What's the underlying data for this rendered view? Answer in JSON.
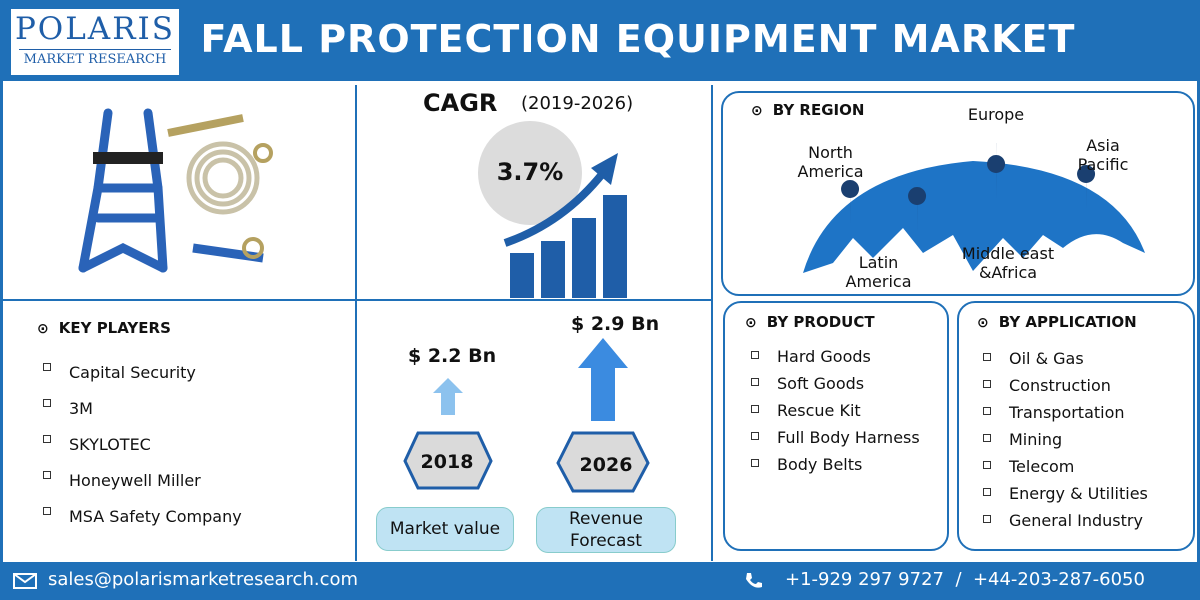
{
  "header": {
    "logo_name": "POLARIS",
    "logo_sub": "MARKET RESEARCH",
    "title": "FALL PROTECTION EQUIPMENT MARKET"
  },
  "cagr": {
    "label": "CAGR",
    "period": "(2019-2026)",
    "value": "3.7%"
  },
  "region": {
    "heading": "BY REGION",
    "labels": [
      "Europe",
      "North America",
      "Asia Pacific",
      "Latin America",
      "Middle east &Africa"
    ]
  },
  "key_players": {
    "heading": "KEY PLAYERS",
    "items": [
      "Capital Security",
      "3M",
      "SKYLOTEC",
      "Honeywell Miller",
      "MSA Safety Company"
    ]
  },
  "market": [
    {
      "amount": "$ 2.2 Bn",
      "year": "2018",
      "label": "Market value"
    },
    {
      "amount": "$ 2.9 Bn",
      "year": "2026",
      "label": "Revenue Forecast"
    }
  ],
  "product": {
    "heading": "BY PRODUCT",
    "items": [
      "Hard Goods",
      "Soft Goods",
      "Rescue Kit",
      "Full Body Harness",
      "Body Belts"
    ]
  },
  "application": {
    "heading": "BY APPLICATION",
    "items": [
      "Oil & Gas",
      "Construction",
      "Transportation",
      "Mining",
      "Telecom",
      "Energy & Utilities",
      "General Industry"
    ]
  },
  "footer": {
    "email": "sales@polarismarketresearch.com",
    "phone": "+1-929 297 9727  /  +44-203-287-6050"
  }
}
